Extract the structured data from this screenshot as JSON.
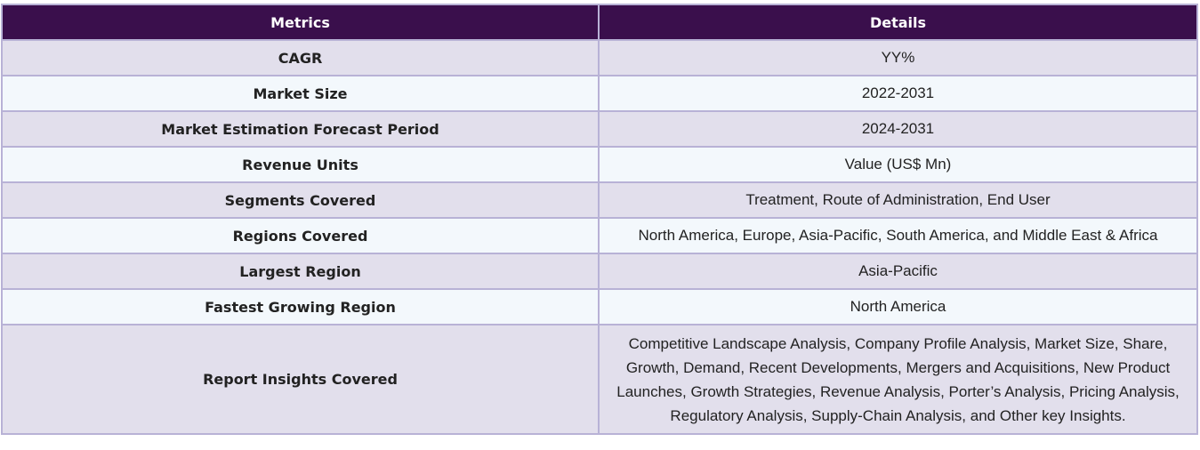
{
  "table": {
    "headers": {
      "metric": "Metrics",
      "details": "Details"
    },
    "rows": [
      {
        "metric": "CAGR",
        "details": "YY%"
      },
      {
        "metric": "Market Size",
        "details": "2022-2031"
      },
      {
        "metric": "Market Estimation Forecast Period",
        "details": "2024-2031"
      },
      {
        "metric": "Revenue Units",
        "details": "Value (US$ Mn)"
      },
      {
        "metric": "Segments Covered",
        "details": "Treatment, Route of Administration, End User"
      },
      {
        "metric": "Regions Covered",
        "details": "North America, Europe, Asia-Pacific, South America, and Middle East & Africa"
      },
      {
        "metric": "Largest Region",
        "details": "Asia-Pacific"
      },
      {
        "metric": "Fastest Growing Region",
        "details": "North America"
      },
      {
        "metric": "Report Insights Covered",
        "details": "Competitive Landscape Analysis, Company Profile Analysis, Market Size, Share, Growth, Demand, Recent Developments, Mergers and Acquisitions, New Product Launches, Growth Strategies, Revenue Analysis, Porter’s Analysis, Pricing Analysis, Regulatory Analysis, Supply-Chain Analysis, and Other key Insights."
      }
    ]
  },
  "colors": {
    "header_bg": "#3a0f4c",
    "row_odd": "#e2dfec",
    "row_even": "#f3f8fc",
    "border": "#b8b2d6"
  }
}
